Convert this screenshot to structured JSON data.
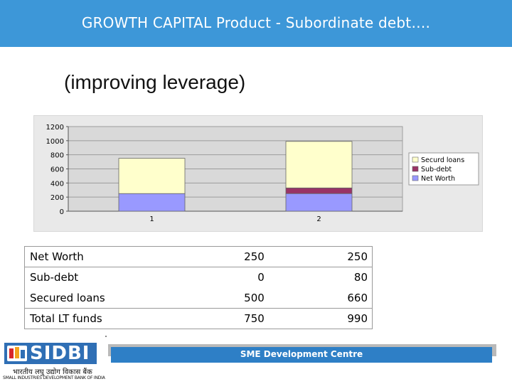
{
  "header": {
    "title": "GROWTH CAPITAL Product - Subordinate debt…."
  },
  "subtitle": "(improving leverage)",
  "chart_data": {
    "type": "bar",
    "stacked": true,
    "categories": [
      "1",
      "2"
    ],
    "series": [
      {
        "name": "Net Worth",
        "values": [
          250,
          250
        ],
        "color": "#9999ff"
      },
      {
        "name": "Sub-debt",
        "values": [
          0,
          80
        ],
        "color": "#993366"
      },
      {
        "name": "Securd loans",
        "values": [
          500,
          660
        ],
        "color": "#ffffcc"
      }
    ],
    "ylim": [
      0,
      1200
    ],
    "yticks": [
      "0",
      "200",
      "400",
      "600",
      "800",
      "1000",
      "1200"
    ],
    "grid": true,
    "legend_placement": "right"
  },
  "table": {
    "rows": [
      {
        "label": "Net Worth",
        "v1": "250",
        "v2": "250"
      },
      {
        "label": "Sub-debt",
        "v1": "0",
        "v2": "80"
      },
      {
        "label": "Secured loans",
        "v1": "500",
        "v2": "660"
      },
      {
        "label": "Total LT funds",
        "v1": "750",
        "v2": "990"
      }
    ]
  },
  "logo": {
    "name": "SIDBI",
    "hindi": "भारतीय लघु उद्योग विकास बैंक",
    "english": "SMALL INDUSTRIES DEVELOPMENT BANK OF INDIA"
  },
  "footer": {
    "text": "SME Development Centre"
  }
}
